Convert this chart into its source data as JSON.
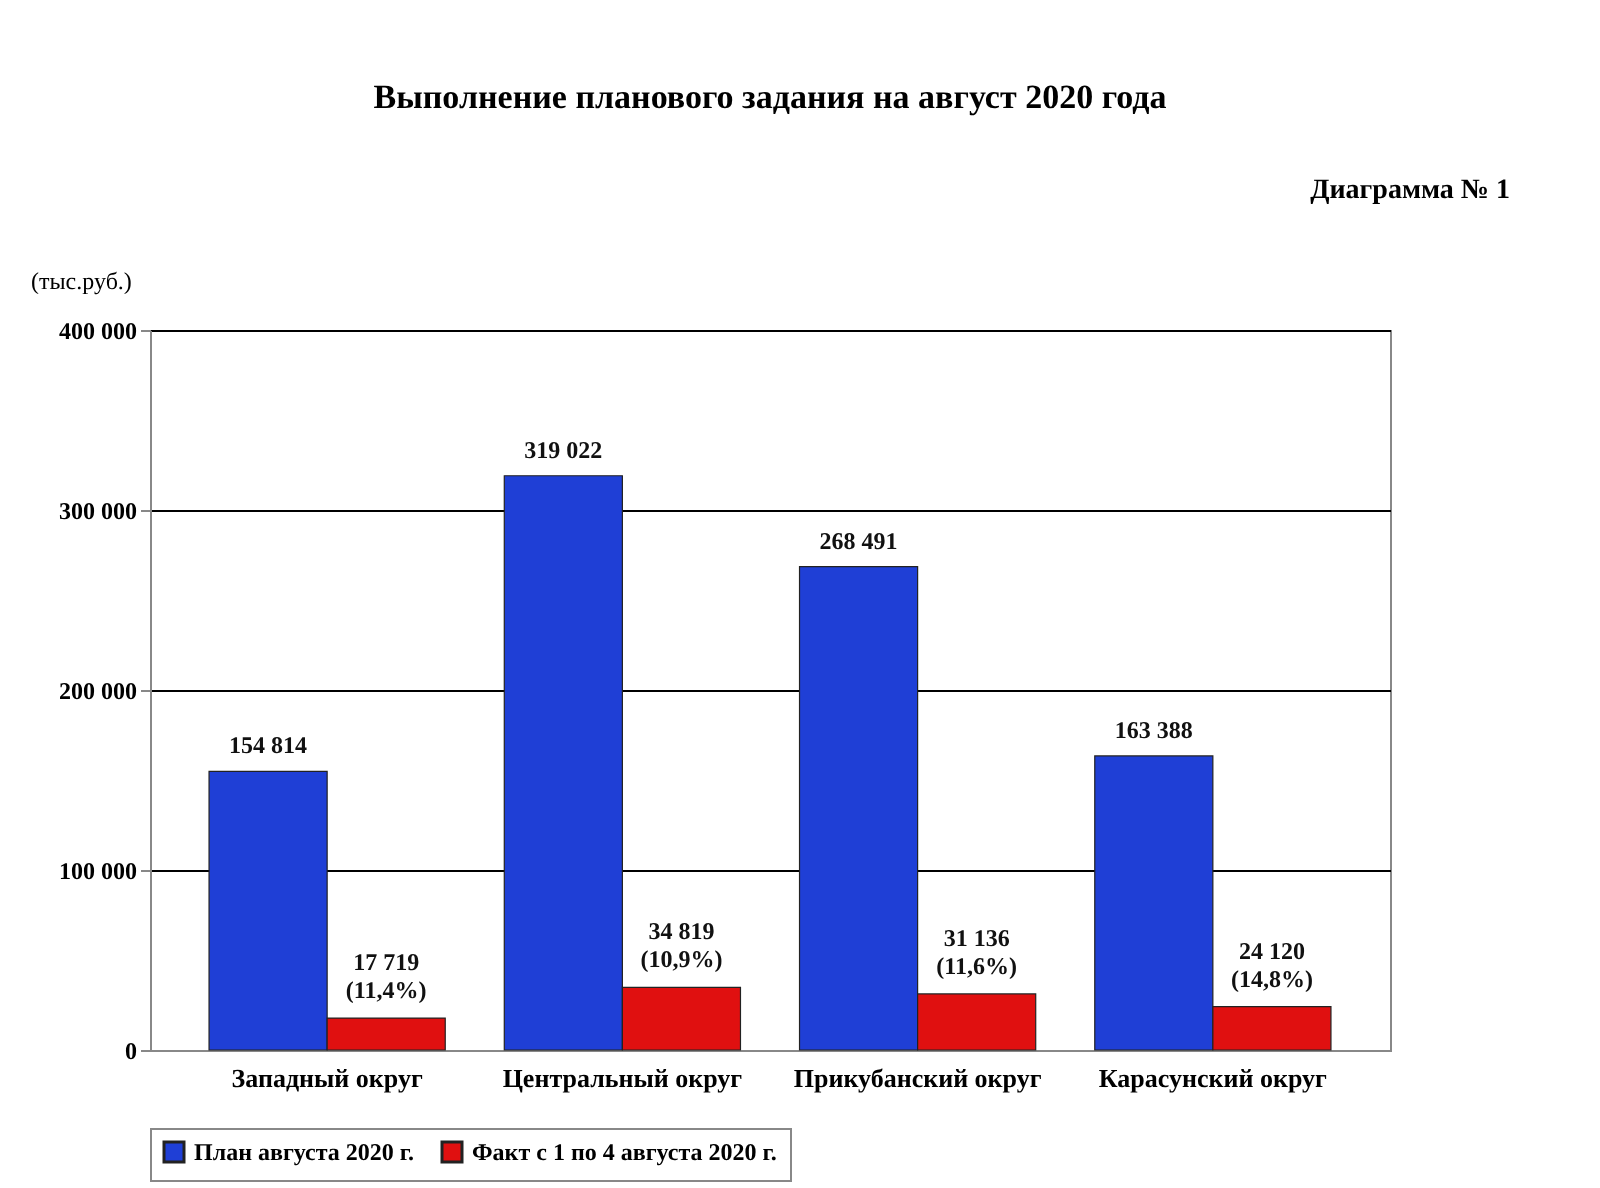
{
  "chart_data": {
    "type": "bar",
    "title": "Выполнение планового задания на август 2020 года",
    "ylabel": "(тыс.руб.)",
    "annotations": [
      "Диаграмма № 1"
    ],
    "categories": [
      "Западный округ",
      "Центральный округ",
      "Прикубанский округ",
      "Карасунский округ"
    ],
    "series": [
      {
        "name": "План августа 2020 г.",
        "color": "#1f3fd6",
        "values": [
          154814,
          319022,
          268491,
          163388
        ],
        "value_labels": [
          "154 814",
          "319 022",
          "268 491",
          "163 388"
        ]
      },
      {
        "name": "Факт с 1 по 4 августа 2020 г.",
        "color": "#e01010",
        "values": [
          17719,
          34819,
          31136,
          24120
        ],
        "value_labels": [
          "17 719\n(11,4%)",
          "34 819\n(10,9%)",
          "31 136\n(11,6%)",
          "24 120\n(14,8%)"
        ]
      }
    ],
    "ylim": [
      0,
      400000
    ],
    "yticks": [
      {
        "value": 0,
        "label": "0"
      },
      {
        "value": 100000,
        "label": "100 000"
      },
      {
        "value": 200000,
        "label": "200 000"
      },
      {
        "value": 300000,
        "label": "300 000"
      },
      {
        "value": 400000,
        "label": "400 000"
      }
    ],
    "grid": "y",
    "legend": "bottom"
  }
}
